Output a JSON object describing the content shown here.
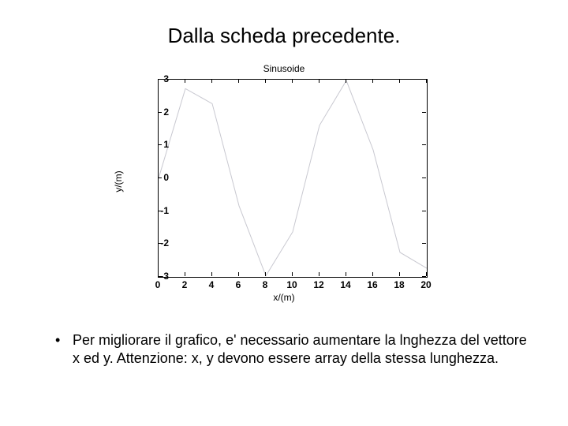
{
  "slide": {
    "title": "Dalla scheda precedente.",
    "bullet": "Per migliorare il grafico, e' necessario aumentare la lnghezza del vettore x ed y. Attenzione: x, y devono essere array della stessa lunghezza."
  },
  "chart": {
    "type": "line",
    "title": "Sinusoide",
    "xlabel": "x/(m)",
    "ylabel": "y/(m)",
    "xlim": [
      0,
      20
    ],
    "ylim": [
      -3,
      3
    ],
    "xticks": [
      0,
      2,
      4,
      6,
      8,
      10,
      12,
      14,
      16,
      18,
      20
    ],
    "yticks": [
      -3,
      -2,
      -1,
      0,
      1,
      2,
      3
    ],
    "background_color": "#ffffff",
    "box_color": "#000000",
    "line_color": "#c8c8d0",
    "line_width": 1,
    "data_x": [
      0,
      2,
      4,
      6,
      8,
      10,
      12,
      14,
      16,
      18,
      20
    ],
    "data_y": [
      0.0,
      2.728,
      2.27,
      -0.838,
      -2.968,
      -1.631,
      1.61,
      2.972,
      0.864,
      -2.254,
      -2.739
    ],
    "title_fontsize": 12,
    "label_fontsize": 12,
    "tick_fontsize": 12
  }
}
